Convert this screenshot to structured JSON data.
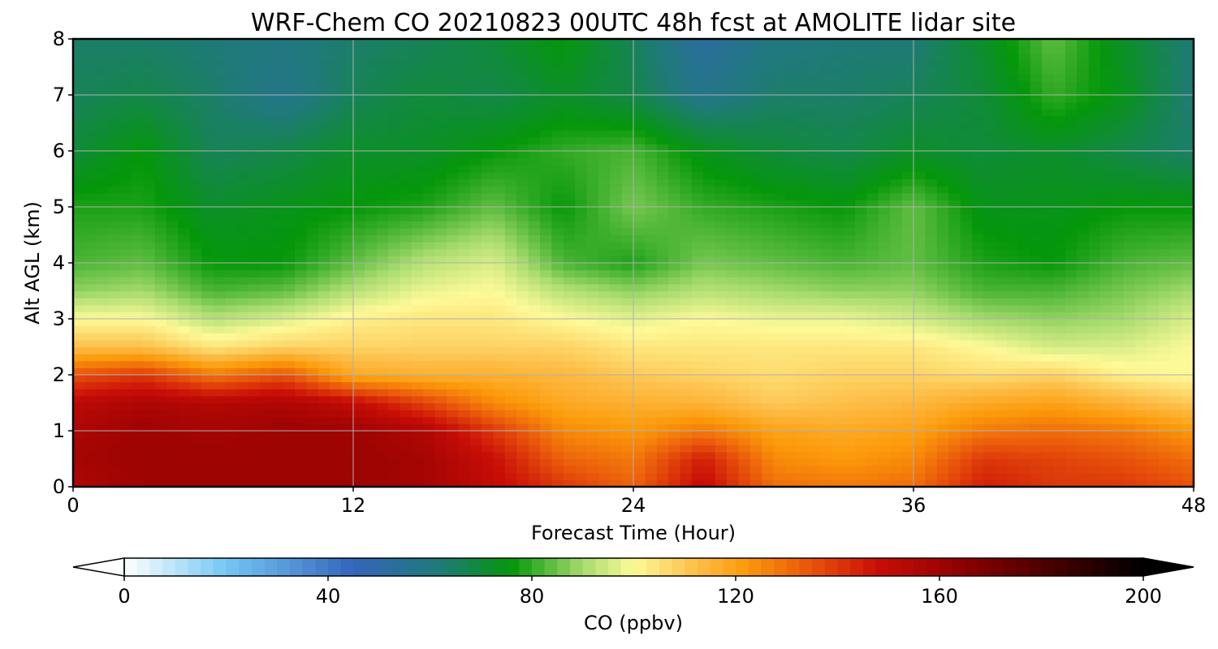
{
  "chart_data": {
    "type": "heatmap",
    "title": "WRF-Chem CO  20210823 00UTC 48h fcst at AMOLITE lidar site",
    "xlabel": "Forecast Time (Hour)",
    "ylabel": "Alt AGL (km)",
    "xlim": [
      0,
      48
    ],
    "ylim": [
      0,
      8
    ],
    "x_ticks": [
      "0",
      "12",
      "24",
      "36",
      "48"
    ],
    "y_ticks": [
      "0",
      "1",
      "2",
      "3",
      "4",
      "5",
      "6",
      "7",
      "8"
    ],
    "grid": true,
    "colorbar": {
      "label": "CO  (ppbv)",
      "range": [
        0,
        200
      ],
      "ticks": [
        "0",
        "40",
        "80",
        "120",
        "160",
        "200"
      ],
      "extend": "both",
      "colors": [
        {
          "value": 0,
          "color": "#ffffff"
        },
        {
          "value": 20,
          "color": "#74c7f4"
        },
        {
          "value": 45,
          "color": "#3465bb"
        },
        {
          "value": 62,
          "color": "#1f7a78"
        },
        {
          "value": 76,
          "color": "#05970a"
        },
        {
          "value": 90,
          "color": "#a6db6e"
        },
        {
          "value": 100,
          "color": "#fdfa98"
        },
        {
          "value": 112,
          "color": "#fdbf4a"
        },
        {
          "value": 122,
          "color": "#fc9a0a"
        },
        {
          "value": 135,
          "color": "#e8520b"
        },
        {
          "value": 148,
          "color": "#c90d07"
        },
        {
          "value": 165,
          "color": "#8b0000"
        },
        {
          "value": 185,
          "color": "#3c0000"
        },
        {
          "value": 200,
          "color": "#000000"
        }
      ]
    },
    "x": [
      0,
      3,
      6,
      9,
      12,
      15,
      18,
      21,
      24,
      27,
      30,
      33,
      36,
      39,
      42,
      45,
      48
    ],
    "y": [
      0,
      0.5,
      1,
      1.5,
      2,
      2.5,
      3,
      3.5,
      4,
      5,
      6,
      7,
      8
    ],
    "z": [
      [
        155,
        160,
        160,
        160,
        160,
        158,
        150,
        140,
        132,
        150,
        130,
        128,
        130,
        145,
        140,
        140,
        135
      ],
      [
        158,
        160,
        160,
        160,
        160,
        158,
        148,
        132,
        128,
        145,
        125,
        122,
        125,
        140,
        138,
        135,
        130
      ],
      [
        156,
        160,
        158,
        160,
        160,
        155,
        140,
        125,
        122,
        128,
        120,
        118,
        120,
        128,
        130,
        128,
        122
      ],
      [
        152,
        156,
        154,
        156,
        150,
        138,
        125,
        118,
        116,
        115,
        110,
        112,
        114,
        118,
        120,
        115,
        110
      ],
      [
        135,
        140,
        128,
        135,
        118,
        116,
        116,
        114,
        110,
        108,
        106,
        108,
        108,
        106,
        108,
        102,
        100
      ],
      [
        112,
        112,
        104,
        108,
        108,
        108,
        108,
        108,
        104,
        104,
        104,
        104,
        104,
        100,
        95,
        96,
        100
      ],
      [
        100,
        100,
        92,
        96,
        102,
        104,
        104,
        100,
        97,
        100,
        98,
        98,
        95,
        90,
        88,
        90,
        96
      ],
      [
        88,
        90,
        82,
        84,
        92,
        98,
        100,
        92,
        88,
        92,
        90,
        88,
        88,
        82,
        82,
        86,
        90
      ],
      [
        82,
        84,
        76,
        76,
        84,
        92,
        96,
        82,
        78,
        86,
        84,
        82,
        84,
        78,
        76,
        82,
        84
      ],
      [
        78,
        78,
        72,
        74,
        76,
        78,
        84,
        76,
        86,
        80,
        78,
        76,
        84,
        74,
        74,
        76,
        76
      ],
      [
        70,
        76,
        66,
        68,
        72,
        72,
        76,
        80,
        82,
        74,
        70,
        68,
        72,
        70,
        72,
        68,
        64
      ],
      [
        66,
        68,
        64,
        58,
        66,
        70,
        68,
        72,
        68,
        58,
        64,
        64,
        66,
        70,
        80,
        74,
        62
      ],
      [
        64,
        64,
        62,
        60,
        64,
        66,
        70,
        76,
        66,
        52,
        60,
        62,
        62,
        72,
        84,
        72,
        62
      ]
    ]
  }
}
